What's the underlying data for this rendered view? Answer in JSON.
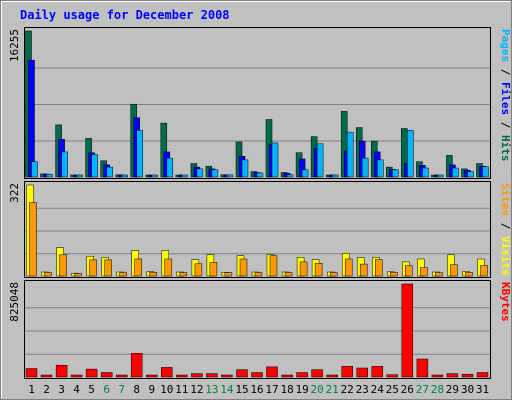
{
  "chart_data": {
    "type": "bar",
    "title": "Daily usage for December 2008",
    "days": [
      "1",
      "2",
      "3",
      "4",
      "5",
      "6",
      "7",
      "8",
      "9",
      "10",
      "11",
      "12",
      "13",
      "14",
      "15",
      "16",
      "17",
      "18",
      "19",
      "20",
      "21",
      "22",
      "23",
      "24",
      "25",
      "26",
      "27",
      "28",
      "29",
      "30",
      "31"
    ],
    "weekend_days": [
      "6",
      "7",
      "13",
      "14",
      "20",
      "21",
      "27",
      "28"
    ],
    "panels": [
      {
        "id": "hits",
        "max_label": "16255",
        "ymax": 16255,
        "right_label": [
          "Pages",
          "Files",
          "Hits"
        ],
        "series": [
          {
            "name": "Hits",
            "color": "#006a4d",
            "values": [
              16255,
              350,
              5800,
              90,
              4300,
              1800,
              250,
              8100,
              220,
              6000,
              100,
              1500,
              1200,
              250,
              3900,
              600,
              6400,
              500,
              2700,
              4500,
              120,
              7300,
              5500,
              4000,
              1100,
              5400,
              1700,
              150,
              2400,
              900,
              1500
            ]
          },
          {
            "name": "Files",
            "color": "#0000ff",
            "values": [
              13000,
              330,
              4200,
              85,
              2700,
              1350,
              230,
              6600,
              200,
              2800,
              95,
              1100,
              900,
              240,
              2300,
              500,
              3600,
              420,
              2000,
              3200,
              110,
              2900,
              4000,
              2800,
              850,
              1500,
              1300,
              140,
              1350,
              750,
              1200
            ]
          },
          {
            "name": "Pages",
            "color": "#00b4ff",
            "values": [
              1700,
              300,
              2800,
              80,
              2500,
              1100,
              200,
              5200,
              180,
              2100,
              90,
              900,
              800,
              230,
              1900,
              450,
              3800,
              250,
              800,
              3700,
              100,
              5000,
              2100,
              1900,
              800,
              5200,
              1000,
              130,
              1000,
              600,
              1150
            ]
          }
        ]
      },
      {
        "id": "visits",
        "max_label": "322",
        "ymax": 322,
        "right_label": [
          "Sites",
          "Visits"
        ],
        "series": [
          {
            "name": "Visits",
            "color": "#ffff00",
            "values": [
              322,
              14,
              100,
              10,
              70,
              66,
              14,
              90,
              16,
              90,
              14,
              58,
              75,
              13,
              72,
              14,
              76,
              14,
              66,
              58,
              14,
              80,
              65,
              66,
              15,
              50,
              60,
              14,
              75,
              16,
              60
            ]
          },
          {
            "name": "Sites",
            "color": "#ff9900",
            "values": [
              260,
              12,
              75,
              9,
              57,
              57,
              12,
              60,
              13,
              60,
              12,
              43,
              48,
              12,
              60,
              12,
              72,
              12,
              50,
              45,
              12,
              60,
              42,
              58,
              13,
              37,
              30,
              12,
              40,
              13,
              37
            ]
          }
        ]
      },
      {
        "id": "kbytes",
        "max_label": "825048",
        "ymax": 825048,
        "right_label": [
          "KBytes"
        ],
        "series": [
          {
            "name": "KBytes",
            "color": "#ff0000",
            "values": [
              75000,
              10000,
              105000,
              10000,
              70000,
              40000,
              10000,
              210000,
              10000,
              85000,
              10000,
              30000,
              30000,
              10000,
              65000,
              40000,
              90000,
              10000,
              40000,
              65000,
              10000,
              95000,
              80000,
              95000,
              20000,
              825048,
              160000,
              10000,
              30000,
              25000,
              40000
            ]
          }
        ]
      }
    ],
    "colors": {
      "background": "#c0c0c0",
      "title": "#0000ff",
      "weekend_label": "#008040",
      "weekday_label": "#000000",
      "grid": "#808080"
    }
  }
}
